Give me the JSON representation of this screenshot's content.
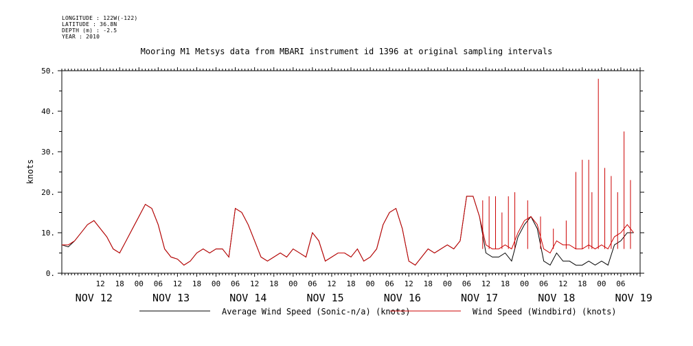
{
  "header": {
    "meta_lines": [
      "LONGITUDE : 122W(-122)",
      "LATITUDE : 36.8N",
      "DEPTH (m) : -2.5",
      "YEAR : 2010"
    ],
    "title": "Mooring M1 Metsys data from MBARI instrument id 1396 at original sampling intervals"
  },
  "chart_data": {
    "type": "line",
    "title": "Mooring M1 Metsys data from MBARI instrument id 1396 at original sampling intervals",
    "ylabel": "knots",
    "xlabel": "",
    "ylim": [
      0,
      50
    ],
    "xlim_hours": [
      -10,
      170
    ],
    "yticks": [
      0,
      10,
      20,
      30,
      40,
      50
    ],
    "ytick_labels": [
      "0.",
      "10.",
      "20.",
      "30.",
      "40.",
      "50."
    ],
    "x_time_ticks": [
      {
        "h": 2,
        "label": "12"
      },
      {
        "h": 8,
        "label": "18"
      },
      {
        "h": 14,
        "label": "00"
      },
      {
        "h": 20,
        "label": "06"
      },
      {
        "h": 26,
        "label": "12"
      },
      {
        "h": 32,
        "label": "18"
      },
      {
        "h": 38,
        "label": "00"
      },
      {
        "h": 44,
        "label": "06"
      },
      {
        "h": 50,
        "label": "12"
      },
      {
        "h": 56,
        "label": "18"
      },
      {
        "h": 62,
        "label": "00"
      },
      {
        "h": 68,
        "label": "06"
      },
      {
        "h": 74,
        "label": "12"
      },
      {
        "h": 80,
        "label": "18"
      },
      {
        "h": 86,
        "label": "00"
      },
      {
        "h": 92,
        "label": "06"
      },
      {
        "h": 98,
        "label": "12"
      },
      {
        "h": 104,
        "label": "18"
      },
      {
        "h": 110,
        "label": "00"
      },
      {
        "h": 116,
        "label": "06"
      },
      {
        "h": 122,
        "label": "12"
      },
      {
        "h": 128,
        "label": "18"
      },
      {
        "h": 134,
        "label": "00"
      },
      {
        "h": 140,
        "label": "06"
      },
      {
        "h": 146,
        "label": "12"
      },
      {
        "h": 152,
        "label": "18"
      },
      {
        "h": 158,
        "label": "00"
      },
      {
        "h": 164,
        "label": "06"
      }
    ],
    "x_day_labels": [
      {
        "h": 0,
        "label": "NOV 12"
      },
      {
        "h": 24,
        "label": "NOV 13"
      },
      {
        "h": 48,
        "label": "NOV 14"
      },
      {
        "h": 72,
        "label": "NOV 15"
      },
      {
        "h": 96,
        "label": "NOV 16"
      },
      {
        "h": 120,
        "label": "NOV 17"
      },
      {
        "h": 144,
        "label": "NOV 18"
      },
      {
        "h": 168,
        "label": "NOV 19"
      }
    ],
    "series": [
      {
        "name": "Average Wind Speed (Sonic-n/a) (knots)",
        "color": "#000000",
        "x": [
          -10,
          -8,
          -6,
          -4,
          -2,
          0,
          2,
          4,
          6,
          8,
          10,
          12,
          14,
          16,
          18,
          20,
          22,
          24,
          26,
          28,
          30,
          32,
          34,
          36,
          38,
          40,
          42,
          44,
          46,
          48,
          50,
          52,
          54,
          56,
          58,
          60,
          62,
          64,
          66,
          68,
          70,
          72,
          74,
          76,
          78,
          80,
          82,
          84,
          86,
          88,
          90,
          92,
          94,
          96,
          98,
          100,
          102,
          104,
          106,
          108,
          110,
          112,
          114,
          116,
          118,
          120,
          122,
          124,
          126,
          128,
          130,
          132,
          134,
          136,
          138,
          140,
          142,
          144,
          146,
          148,
          150,
          152,
          154,
          156,
          158,
          160,
          162,
          164,
          166,
          168
        ],
        "y": [
          7,
          6.5,
          8,
          10,
          12,
          13,
          11,
          9,
          6,
          5,
          8,
          11,
          14,
          17,
          16,
          12,
          6,
          4,
          3.5,
          2,
          3,
          5,
          6,
          5,
          6,
          6,
          4,
          16,
          15,
          12,
          8,
          4,
          3,
          4,
          5,
          4,
          6,
          5,
          4,
          10,
          8,
          3,
          4,
          5,
          5,
          4,
          6,
          3,
          4,
          6,
          12,
          15,
          16,
          11,
          3,
          2,
          4,
          6,
          5,
          6,
          7,
          6,
          8,
          19,
          19,
          14,
          5,
          4,
          4,
          5,
          3,
          9,
          12,
          14,
          11,
          3,
          2,
          5,
          3,
          3,
          2,
          2,
          3,
          2,
          3,
          2,
          7,
          8,
          10,
          10
        ]
      },
      {
        "name": "Wind Speed (Windbird) (knots)",
        "color": "#cc0000",
        "x": [
          -10,
          -8,
          -6,
          -4,
          -2,
          0,
          2,
          4,
          6,
          8,
          10,
          12,
          14,
          16,
          18,
          20,
          22,
          24,
          26,
          28,
          30,
          32,
          34,
          36,
          38,
          40,
          42,
          44,
          46,
          48,
          50,
          52,
          54,
          56,
          58,
          60,
          62,
          64,
          66,
          68,
          70,
          72,
          74,
          76,
          78,
          80,
          82,
          84,
          86,
          88,
          90,
          92,
          94,
          96,
          98,
          100,
          102,
          104,
          106,
          108,
          110,
          112,
          114,
          116,
          118,
          120,
          122,
          124,
          126,
          128,
          130,
          132,
          134,
          136,
          138,
          140,
          142,
          144,
          146,
          148,
          150,
          152,
          154,
          156,
          158,
          160,
          162,
          164,
          166,
          168
        ],
        "y": [
          7,
          7,
          8,
          10,
          12,
          13,
          11,
          9,
          6,
          5,
          8,
          11,
          14,
          17,
          16,
          12,
          6,
          4,
          3.5,
          2,
          3,
          5,
          6,
          5,
          6,
          6,
          4,
          16,
          15,
          12,
          8,
          4,
          3,
          4,
          5,
          4,
          6,
          5,
          4,
          10,
          8,
          3,
          4,
          5,
          5,
          4,
          6,
          3,
          4,
          6,
          12,
          15,
          16,
          11,
          3,
          2,
          4,
          6,
          5,
          6,
          7,
          6,
          8,
          19,
          19,
          14,
          7,
          6,
          6,
          7,
          6,
          10,
          13,
          14,
          12,
          6,
          5,
          8,
          7,
          7,
          6,
          6,
          7,
          6,
          7,
          6,
          9,
          10,
          12,
          10
        ],
        "spikes": [
          {
            "x": 121,
            "y": 18
          },
          {
            "x": 123,
            "y": 19
          },
          {
            "x": 125,
            "y": 19
          },
          {
            "x": 127,
            "y": 15
          },
          {
            "x": 129,
            "y": 19
          },
          {
            "x": 131,
            "y": 20
          },
          {
            "x": 135,
            "y": 18
          },
          {
            "x": 139,
            "y": 14
          },
          {
            "x": 143,
            "y": 11
          },
          {
            "x": 147,
            "y": 13
          },
          {
            "x": 150,
            "y": 25
          },
          {
            "x": 152,
            "y": 28
          },
          {
            "x": 154,
            "y": 28
          },
          {
            "x": 155,
            "y": 20
          },
          {
            "x": 157,
            "y": 48
          },
          {
            "x": 159,
            "y": 26
          },
          {
            "x": 161,
            "y": 24
          },
          {
            "x": 163,
            "y": 20
          },
          {
            "x": 165,
            "y": 35
          },
          {
            "x": 167,
            "y": 23
          }
        ]
      }
    ],
    "legend": "bottom",
    "grid": false
  }
}
